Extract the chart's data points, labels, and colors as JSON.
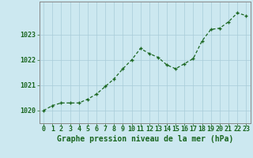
{
  "x": [
    0,
    1,
    2,
    3,
    4,
    5,
    6,
    7,
    8,
    9,
    10,
    11,
    12,
    13,
    14,
    15,
    16,
    17,
    18,
    19,
    20,
    21,
    22,
    23
  ],
  "y": [
    1020.0,
    1020.2,
    1020.3,
    1020.3,
    1020.3,
    1020.45,
    1020.65,
    1020.95,
    1021.25,
    1021.65,
    1022.0,
    1022.45,
    1022.25,
    1022.1,
    1021.8,
    1021.65,
    1021.85,
    1022.05,
    1022.75,
    1023.2,
    1023.25,
    1023.5,
    1023.85,
    1023.75
  ],
  "line_color": "#1a6620",
  "marker_color": "#1a6620",
  "bg_color": "#cce8f0",
  "grid_color": "#a8ccd8",
  "axis_color": "#888888",
  "title": "Graphe pression niveau de la mer (hPa)",
  "ylim": [
    1019.5,
    1024.3
  ],
  "yticks": [
    1020,
    1021,
    1022,
    1023
  ],
  "xticks": [
    0,
    1,
    2,
    3,
    4,
    5,
    6,
    7,
    8,
    9,
    10,
    11,
    12,
    13,
    14,
    15,
    16,
    17,
    18,
    19,
    20,
    21,
    22,
    23
  ],
  "title_fontsize": 7.0,
  "tick_fontsize": 6.0,
  "title_color": "#1a6620",
  "tick_color": "#1a6620"
}
